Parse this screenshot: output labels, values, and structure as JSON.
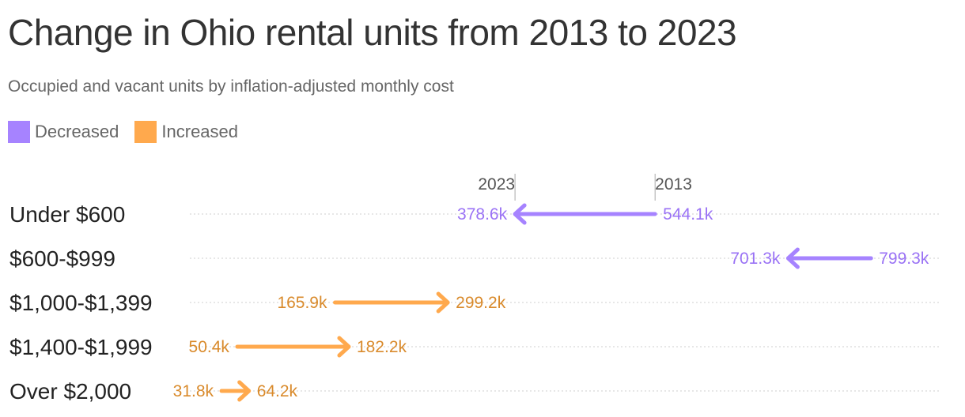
{
  "title": "Change in Ohio rental units from 2013 to 2023",
  "subtitle": "Occupied and vacant units by inflation-adjusted monthly cost",
  "legend": [
    {
      "label": "Decreased",
      "color": "#a683ff"
    },
    {
      "label": "Increased",
      "color": "#ffa94d"
    }
  ],
  "colors": {
    "decreased_line": "#a683ff",
    "decreased_text": "#9a72f5",
    "increased_line": "#ffa94d",
    "increased_text": "#d98a2b"
  },
  "chart_data": {
    "type": "arrow",
    "reference_labels": {
      "start": "2013",
      "end": "2023"
    },
    "categories": [
      "Under $600",
      "$600-$999",
      "$1,000-$1,399",
      "$1,400-$1,999",
      "Over $2,000"
    ],
    "series": [
      {
        "category": "Under $600",
        "from": 544.1,
        "to": 378.6,
        "from_label": "544.1k",
        "to_label": "378.6k",
        "direction": "decreased"
      },
      {
        "category": "$600-$999",
        "from": 799.3,
        "to": 701.3,
        "from_label": "799.3k",
        "to_label": "701.3k",
        "direction": "decreased"
      },
      {
        "category": "$1,000-$1,399",
        "from": 165.9,
        "to": 299.2,
        "from_label": "165.9k",
        "to_label": "299.2k",
        "direction": "increased"
      },
      {
        "category": "$1,400-$1,999",
        "from": 50.4,
        "to": 182.2,
        "from_label": "50.4k",
        "to_label": "182.2k",
        "direction": "increased"
      },
      {
        "category": "Over $2,000",
        "from": 31.8,
        "to": 64.2,
        "from_label": "31.8k",
        "to_label": "64.2k",
        "direction": "increased"
      }
    ],
    "xlim": [
      0,
      800
    ]
  }
}
